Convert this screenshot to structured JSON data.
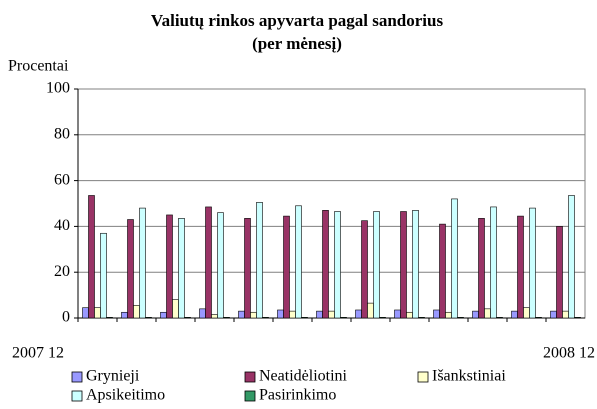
{
  "chart_data": {
    "type": "bar",
    "title": "Valiutų rinkos apyvarta pagal sandorius",
    "subtitle": "(per mėnesį)",
    "y_label": "Procentai",
    "categories": [
      "2007 12",
      null,
      null,
      null,
      null,
      null,
      null,
      null,
      null,
      null,
      null,
      null,
      "2008 12"
    ],
    "series": [
      {
        "name": "Grynieji",
        "color": "#9999ff",
        "values": [
          4.5,
          2.5,
          2.5,
          4,
          3,
          3.5,
          3,
          3.5,
          3.5,
          3.5,
          3,
          3,
          3
        ]
      },
      {
        "name": "Neatidėliotini",
        "color": "#993366",
        "values": [
          53.5,
          43,
          45,
          48.5,
          43.5,
          44.5,
          47,
          42.5,
          46.5,
          41,
          43.5,
          44.5,
          40
        ]
      },
      {
        "name": "Išankstiniai",
        "color": "#ffffcc",
        "values": [
          4.5,
          5.5,
          8,
          1.5,
          2.5,
          3,
          3,
          6.5,
          2.5,
          2.5,
          4,
          4.5,
          3
        ]
      },
      {
        "name": "Apsikeitimo",
        "color": "#ccffff",
        "values": [
          37,
          48,
          43.5,
          46,
          50.5,
          49,
          46.5,
          46.5,
          47,
          52,
          48.5,
          48,
          53.5
        ]
      },
      {
        "name": "Pasirinkimo",
        "color": "#339966",
        "values": [
          0.3,
          0.3,
          0.3,
          0.3,
          0.3,
          0.3,
          0.3,
          0.3,
          0.3,
          0.3,
          0.3,
          0.3,
          0.3
        ]
      }
    ],
    "ylim": [
      0,
      100
    ],
    "yticks": [
      0,
      20,
      40,
      60,
      80,
      100
    ],
    "grid": true,
    "legend": "bottom"
  }
}
